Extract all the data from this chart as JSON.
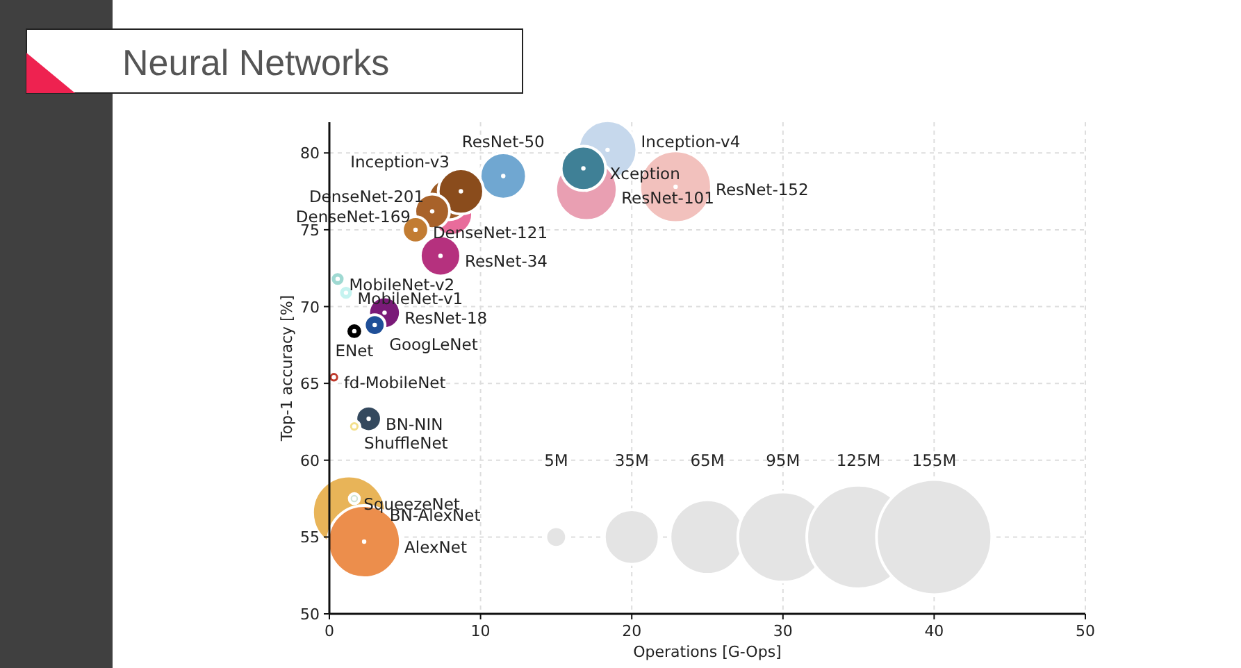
{
  "chart_data": {
    "type": "bubble",
    "title": "Neural Networks",
    "xlabel": "Operations [G-Ops]",
    "ylabel": "Top-1 accuracy [%]",
    "xlim": [
      0,
      50
    ],
    "ylim": [
      50,
      82
    ],
    "xticks": [
      0,
      10,
      20,
      30,
      40,
      50
    ],
    "yticks": [
      50,
      55,
      60,
      65,
      70,
      75,
      80
    ],
    "grid": true,
    "size_legend": [
      {
        "value": 5,
        "label": "5M"
      },
      {
        "value": 35,
        "label": "35M"
      },
      {
        "value": 65,
        "label": "65M"
      },
      {
        "value": 95,
        "label": "95M"
      },
      {
        "value": 125,
        "label": "125M"
      },
      {
        "value": 155,
        "label": "155M"
      }
    ],
    "series": [
      {
        "name": "Inception-v4",
        "color": "#c6d8ec",
        "x": [
          18.4
        ],
        "values": [
          80.2
        ],
        "sizes": [
          40
        ]
      },
      {
        "name": "ResNet-152",
        "color": "#f2c1bd",
        "x": [
          22.9
        ],
        "values": [
          77.8
        ],
        "sizes": [
          60
        ]
      },
      {
        "name": "ResNet-101",
        "color": "#e99fb2",
        "x": [
          17.0
        ],
        "values": [
          77.6
        ],
        "sizes": [
          44
        ]
      },
      {
        "name": "Xception",
        "color": "#3f8096",
        "x": [
          16.8
        ],
        "values": [
          79.0
        ],
        "sizes": [
          23
        ]
      },
      {
        "name": "ResNet-50",
        "color": "#70a7d1",
        "x": [
          11.5
        ],
        "values": [
          78.5
        ],
        "sizes": [
          25
        ]
      },
      {
        "color": "#e86c9b",
        "x": [
          8.1
        ],
        "values": [
          76.0
        ],
        "sizes": [
          20
        ]
      },
      {
        "name": "DenseNet-201",
        "color": "#9c5a24",
        "x": [
          7.9
        ],
        "values": [
          77.0
        ],
        "sizes": [
          20
        ]
      },
      {
        "name": "Inception-v3",
        "color": "#8a4c1c",
        "x": [
          8.7
        ],
        "values": [
          77.5
        ],
        "sizes": [
          24
        ]
      },
      {
        "name": "DenseNet-169",
        "color": "#a8622a",
        "x": [
          6.8
        ],
        "values": [
          76.2
        ],
        "sizes": [
          14
        ]
      },
      {
        "name": "DenseNet-121",
        "color": "#c27c32",
        "x": [
          5.7
        ],
        "values": [
          75.0
        ],
        "sizes": [
          8
        ]
      },
      {
        "name": "ResNet-34",
        "color": "#b5317e",
        "x": [
          7.35
        ],
        "values": [
          73.3
        ],
        "sizes": [
          19
        ]
      },
      {
        "name": "MobileNet-v2",
        "color": "#9fd9d2",
        "x": [
          0.55
        ],
        "values": [
          71.8
        ],
        "sizes": [
          2.5
        ]
      },
      {
        "name": "MobileNet-v1",
        "color": "#c5f3f0",
        "x": [
          1.1
        ],
        "values": [
          70.9
        ],
        "sizes": [
          2.5
        ]
      },
      {
        "name": "ResNet-18",
        "color": "#7a1a78",
        "x": [
          3.65
        ],
        "values": [
          69.6
        ],
        "sizes": [
          11.7
        ]
      },
      {
        "name": "GoogLeNet",
        "color": "#1f4f98",
        "x": [
          3.0
        ],
        "values": [
          68.8
        ],
        "sizes": [
          5
        ]
      },
      {
        "name": "ENet",
        "color": "#000000",
        "x": [
          1.65
        ],
        "values": [
          68.4
        ],
        "sizes": [
          3.2
        ]
      },
      {
        "name": "fd-MobileNet",
        "color": "#c0392b",
        "x": [
          0.3
        ],
        "values": [
          65.4
        ],
        "sizes": [
          1.5
        ]
      },
      {
        "name": "BN-NIN",
        "color": "#34495e",
        "x": [
          2.6
        ],
        "values": [
          62.7
        ],
        "sizes": [
          7.6
        ]
      },
      {
        "name": "ShuffleNet",
        "color": "#f3e08c",
        "x": [
          1.65
        ],
        "values": [
          62.2
        ],
        "sizes": [
          1.5
        ]
      },
      {
        "name": "BN-AlexNet",
        "color": "#e8b458",
        "x": [
          1.3
        ],
        "values": [
          56.6
        ],
        "sizes": [
          62
        ]
      },
      {
        "name": "SqueezeNet",
        "color": "#cfe3d4",
        "x": [
          1.65
        ],
        "values": [
          57.5
        ],
        "sizes": [
          1.2
        ]
      },
      {
        "name": "AlexNet",
        "color": "#ec8e4c",
        "x": [
          2.3
        ],
        "values": [
          54.7
        ],
        "sizes": [
          61
        ]
      }
    ]
  }
}
